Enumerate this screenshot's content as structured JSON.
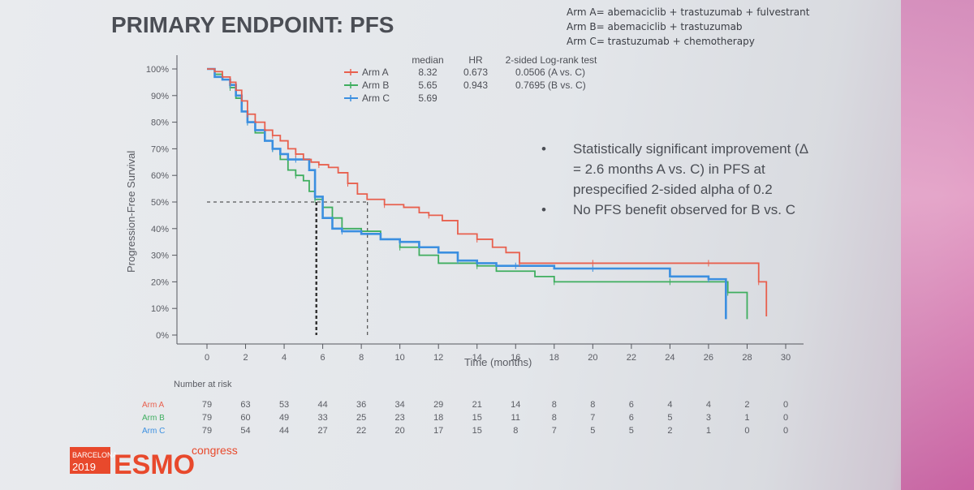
{
  "slide": {
    "title": "PRIMARY ENDPOINT: PFS",
    "arm_definitions": [
      "Arm A= abemaciclib + trastuzumab + fulvestrant",
      "Arm B= abemaciclib + trastuzumab",
      "Arm C= trastuzumab + chemotherapy"
    ],
    "bullets": [
      [
        "Statistically significant improvement  (Δ",
        "= 2.6 months A vs. C) in PFS at",
        "prespecified 2-sided alpha of 0.2"
      ],
      [
        "No PFS benefit observed for B vs. C"
      ]
    ],
    "logo": {
      "city": "BARCELONA",
      "year": "2019",
      "brand": "ESMO",
      "suffix": "congress"
    }
  },
  "chart_data": {
    "type": "line",
    "title": "",
    "xlabel": "Time (months)",
    "ylabel": "Progression-Free Survival",
    "xlim": [
      0,
      30
    ],
    "ylim": [
      0,
      100
    ],
    "x_ticks": [
      0,
      2,
      4,
      6,
      8,
      10,
      12,
      14,
      16,
      18,
      20,
      22,
      24,
      26,
      28,
      30
    ],
    "y_ticks": [
      0,
      10,
      20,
      30,
      40,
      50,
      60,
      70,
      80,
      90,
      100
    ],
    "y_tick_labels": [
      "0%",
      "10%",
      "20%",
      "30%",
      "40%",
      "50%",
      "60%",
      "70%",
      "80%",
      "90%",
      "100%"
    ],
    "stats_headers": [
      "median",
      "HR",
      "2-sided Log-rank test"
    ],
    "series": [
      {
        "name": "Arm A",
        "color": "#e8604e",
        "median": "8.32",
        "hr": "0.673",
        "logrank": "0.0506 (A vs. C)",
        "x": [
          0,
          0.4,
          0.8,
          1.2,
          1.5,
          1.8,
          2.1,
          2.5,
          3.0,
          3.4,
          3.8,
          4.2,
          4.6,
          5.0,
          5.4,
          5.8,
          6.3,
          6.8,
          7.3,
          7.8,
          8.3,
          9.2,
          10.2,
          11.0,
          11.5,
          12.2,
          13.0,
          14.0,
          14.8,
          15.5,
          16.2,
          17.0,
          18.0,
          20.0,
          22.0,
          24.0,
          26.0,
          27.2,
          28.3,
          28.6,
          29.0
        ],
        "y": [
          100,
          99,
          97,
          95,
          92,
          88,
          83,
          80,
          77,
          75,
          73,
          70,
          68,
          66,
          65,
          64,
          63,
          61,
          57,
          53,
          51,
          49,
          48,
          46,
          45,
          43,
          38,
          36,
          33,
          31,
          27,
          27,
          27,
          27,
          27,
          27,
          27,
          27,
          27,
          20,
          7
        ]
      },
      {
        "name": "Arm B",
        "color": "#3fae5f",
        "median": "5.65",
        "hr": "0.943",
        "logrank": "0.7695 (B vs. C)",
        "x": [
          0,
          0.4,
          0.8,
          1.2,
          1.5,
          1.8,
          2.1,
          2.5,
          3.0,
          3.4,
          3.8,
          4.2,
          4.6,
          5.0,
          5.3,
          5.6,
          6.0,
          6.5,
          7.0,
          8.0,
          9.0,
          10.0,
          11.0,
          12.0,
          14.0,
          15.0,
          17.0,
          18.0,
          20.0,
          22.0,
          24.0,
          25.0,
          26.0,
          27.0,
          27.8,
          28.0
        ],
        "y": [
          100,
          98,
          96,
          93,
          89,
          84,
          80,
          76,
          73,
          70,
          66,
          62,
          60,
          58,
          54,
          51,
          48,
          44,
          40,
          39,
          36,
          33,
          30,
          27,
          26,
          24,
          22,
          20,
          20,
          20,
          20,
          20,
          20,
          16,
          16,
          6
        ]
      },
      {
        "name": "Arm C",
        "color": "#3b8fe0",
        "median": "5.69",
        "hr": "",
        "logrank": "",
        "x": [
          0,
          0.4,
          0.8,
          1.2,
          1.5,
          1.8,
          2.1,
          2.5,
          3.0,
          3.4,
          3.8,
          4.2,
          4.6,
          5.0,
          5.3,
          5.6,
          6.0,
          6.5,
          7.0,
          8.0,
          9.0,
          10.0,
          11.0,
          12.0,
          13.0,
          14.0,
          15.0,
          16.0,
          17.0,
          18.0,
          20.0,
          22.0,
          24.0,
          26.0,
          26.5,
          26.9
        ],
        "y": [
          100,
          97,
          96,
          94,
          90,
          84,
          80,
          77,
          73,
          70,
          68,
          66,
          66,
          66,
          62,
          52,
          44,
          40,
          39,
          38,
          36,
          35,
          33,
          31,
          28,
          27,
          26,
          26,
          26,
          25,
          25,
          25,
          22,
          21,
          21,
          6
        ]
      }
    ],
    "median_reference": {
      "y": 50,
      "arm_a_x": 8.32,
      "arm_b_x": 5.65,
      "arm_c_x": 5.69
    },
    "number_at_risk": {
      "label": "Number at risk",
      "timepoints": [
        0,
        2,
        4,
        6,
        8,
        10,
        12,
        14,
        16,
        18,
        20,
        22,
        24,
        26,
        28,
        30
      ],
      "rows": [
        {
          "arm": "Arm A",
          "values": [
            "79",
            "63",
            "53",
            "44",
            "36",
            "34",
            "29",
            "21",
            "14",
            "8",
            "8",
            "6",
            "4",
            "4",
            "2",
            "0"
          ]
        },
        {
          "arm": "Arm B",
          "values": [
            "79",
            "60",
            "49",
            "33",
            "25",
            "23",
            "18",
            "15",
            "11",
            "8",
            "7",
            "6",
            "5",
            "3",
            "1",
            "0"
          ]
        },
        {
          "arm": "Arm C",
          "values": [
            "79",
            "54",
            "44",
            "27",
            "22",
            "20",
            "17",
            "15",
            "8",
            "7",
            "5",
            "5",
            "2",
            "1",
            "0",
            "0"
          ]
        }
      ]
    }
  }
}
